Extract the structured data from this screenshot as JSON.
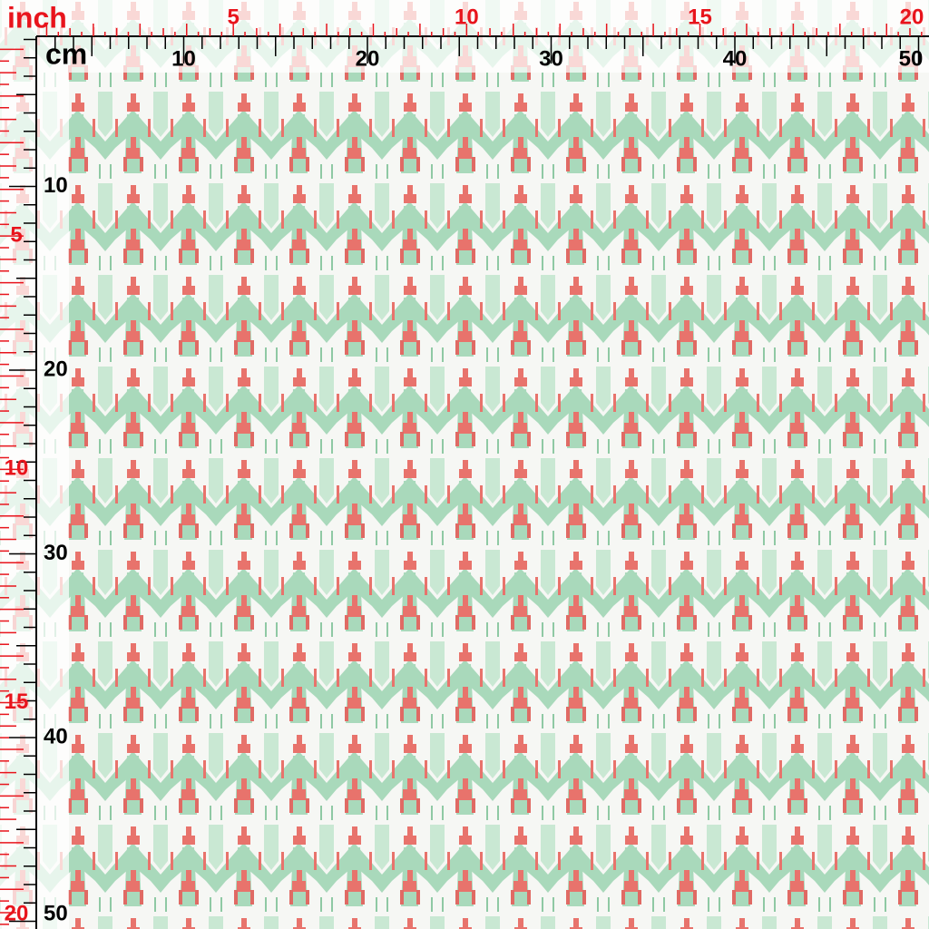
{
  "ruler": {
    "inch_unit": "inch",
    "cm_unit": "cm",
    "top_inch_labels": [
      5,
      10,
      15,
      20
    ],
    "top_cm_labels": [
      10,
      20,
      30,
      40,
      50
    ],
    "left_cm_labels": [
      10,
      20,
      30,
      40,
      50
    ],
    "left_inch_labels": [
      5,
      10,
      15,
      20
    ]
  }
}
